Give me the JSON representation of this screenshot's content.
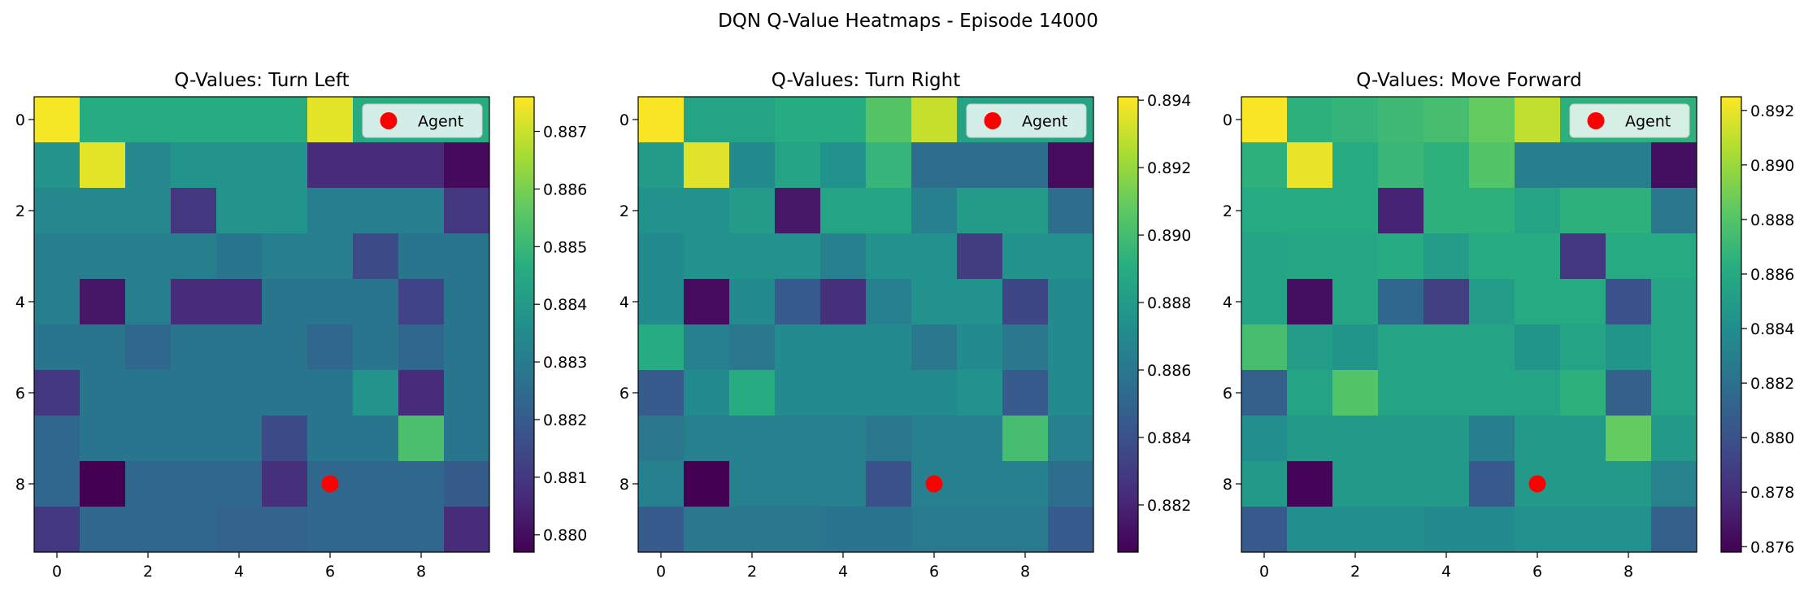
{
  "figure": {
    "title": "DQN Q-Value Heatmaps - Episode 14000"
  },
  "colors": {
    "agent_marker": "#ff0000",
    "legend_bg": "#ffffff",
    "axis": "#000000"
  },
  "chart_data": [
    {
      "type": "heatmap",
      "title": "Q-Values: Turn Left",
      "colormap": "viridis",
      "vmin": 0.8797,
      "vmax": 0.8876,
      "colorbar_ticks": [
        0.88,
        0.881,
        0.882,
        0.883,
        0.884,
        0.885,
        0.886,
        0.887
      ],
      "x_ticks": [
        0,
        2,
        4,
        6,
        8
      ],
      "y_ticks": [
        0,
        2,
        4,
        6,
        8
      ],
      "xlim": [
        -0.5,
        9.5
      ],
      "ylim": [
        9.5,
        -0.5
      ],
      "legend": {
        "position": "upper right",
        "label": "Agent"
      },
      "agent": {
        "x": 6,
        "y": 8
      },
      "values": [
        [
          0.8875,
          0.8846,
          0.8846,
          0.8846,
          0.8846,
          0.8846,
          0.8873,
          0.8846,
          0.8846,
          0.8846
        ],
        [
          0.8838,
          0.8873,
          0.8834,
          0.8838,
          0.8838,
          0.8838,
          0.8807,
          0.8807,
          0.8807,
          0.8799
        ],
        [
          0.8834,
          0.8834,
          0.8834,
          0.881,
          0.8838,
          0.8838,
          0.8831,
          0.8831,
          0.8831,
          0.881
        ],
        [
          0.8831,
          0.8831,
          0.8831,
          0.8831,
          0.8828,
          0.8831,
          0.8831,
          0.8815,
          0.8828,
          0.8828
        ],
        [
          0.8831,
          0.8802,
          0.8831,
          0.8807,
          0.8807,
          0.8828,
          0.8828,
          0.8828,
          0.8813,
          0.8828
        ],
        [
          0.8828,
          0.8828,
          0.8824,
          0.8828,
          0.8828,
          0.8828,
          0.8824,
          0.8828,
          0.8824,
          0.8828
        ],
        [
          0.881,
          0.8828,
          0.8828,
          0.8828,
          0.8828,
          0.8828,
          0.8828,
          0.8838,
          0.8807,
          0.8828
        ],
        [
          0.8824,
          0.8828,
          0.8828,
          0.8828,
          0.8828,
          0.8815,
          0.8828,
          0.8828,
          0.8853,
          0.8828
        ],
        [
          0.8824,
          0.8797,
          0.8824,
          0.8824,
          0.8824,
          0.8808,
          0.8824,
          0.8824,
          0.8824,
          0.882
        ],
        [
          0.881,
          0.8824,
          0.8824,
          0.8824,
          0.8822,
          0.8822,
          0.8824,
          0.8824,
          0.8824,
          0.8807
        ]
      ]
    },
    {
      "type": "heatmap",
      "title": "Q-Values: Turn Right",
      "colormap": "viridis",
      "vmin": 0.8806,
      "vmax": 0.8941,
      "colorbar_ticks": [
        0.882,
        0.884,
        0.886,
        0.888,
        0.89,
        0.892,
        0.894
      ],
      "x_ticks": [
        0,
        2,
        4,
        6,
        8
      ],
      "y_ticks": [
        0,
        2,
        4,
        6,
        8
      ],
      "xlim": [
        -0.5,
        9.5
      ],
      "ylim": [
        9.5,
        -0.5
      ],
      "legend": {
        "position": "upper right",
        "label": "Agent"
      },
      "agent": {
        "x": 6,
        "y": 8
      },
      "values": [
        [
          0.894,
          0.8885,
          0.8885,
          0.889,
          0.889,
          0.8905,
          0.893,
          0.8885,
          0.8885,
          0.8885
        ],
        [
          0.888,
          0.8935,
          0.887,
          0.8885,
          0.8875,
          0.8895,
          0.8855,
          0.8855,
          0.8855,
          0.881
        ],
        [
          0.8875,
          0.8875,
          0.888,
          0.8815,
          0.8885,
          0.8885,
          0.8865,
          0.888,
          0.888,
          0.8855
        ],
        [
          0.887,
          0.8875,
          0.8875,
          0.8875,
          0.8865,
          0.8875,
          0.8875,
          0.883,
          0.8875,
          0.8875
        ],
        [
          0.887,
          0.881,
          0.887,
          0.8845,
          0.8825,
          0.8865,
          0.8875,
          0.8875,
          0.8835,
          0.887
        ],
        [
          0.889,
          0.8865,
          0.886,
          0.887,
          0.887,
          0.887,
          0.886,
          0.887,
          0.886,
          0.887
        ],
        [
          0.8845,
          0.887,
          0.889,
          0.887,
          0.887,
          0.887,
          0.887,
          0.8875,
          0.8845,
          0.887
        ],
        [
          0.886,
          0.8865,
          0.8865,
          0.8865,
          0.8865,
          0.886,
          0.8865,
          0.8865,
          0.89,
          0.8865
        ],
        [
          0.8865,
          0.8806,
          0.8865,
          0.8865,
          0.8865,
          0.884,
          0.8865,
          0.8865,
          0.8865,
          0.8855
        ],
        [
          0.8845,
          0.886,
          0.886,
          0.886,
          0.8858,
          0.8858,
          0.8862,
          0.8862,
          0.8862,
          0.8845
        ]
      ]
    },
    {
      "type": "heatmap",
      "title": "Q-Values: Move Forward",
      "colormap": "viridis",
      "vmin": 0.8758,
      "vmax": 0.8925,
      "colorbar_ticks": [
        0.876,
        0.878,
        0.88,
        0.882,
        0.884,
        0.886,
        0.888,
        0.89,
        0.892
      ],
      "x_ticks": [
        0,
        2,
        4,
        6,
        8
      ],
      "y_ticks": [
        0,
        2,
        4,
        6,
        8
      ],
      "xlim": [
        -0.5,
        9.5
      ],
      "ylim": [
        9.5,
        -0.5
      ],
      "legend": {
        "position": "upper right",
        "label": "Agent"
      },
      "agent": {
        "x": 6,
        "y": 8
      },
      "values": [
        [
          0.8924,
          0.8865,
          0.8868,
          0.8872,
          0.8875,
          0.8885,
          0.891,
          0.8865,
          0.8865,
          0.8865
        ],
        [
          0.8865,
          0.892,
          0.886,
          0.887,
          0.8865,
          0.888,
          0.883,
          0.883,
          0.883,
          0.8765
        ],
        [
          0.886,
          0.886,
          0.886,
          0.8775,
          0.8865,
          0.8865,
          0.8855,
          0.8865,
          0.8865,
          0.8825
        ],
        [
          0.8855,
          0.8858,
          0.8858,
          0.8862,
          0.885,
          0.8862,
          0.8862,
          0.8785,
          0.886,
          0.886
        ],
        [
          0.8855,
          0.8765,
          0.8858,
          0.8815,
          0.879,
          0.885,
          0.886,
          0.886,
          0.88,
          0.8855
        ],
        [
          0.8875,
          0.885,
          0.8845,
          0.8855,
          0.8855,
          0.8855,
          0.8845,
          0.8855,
          0.8845,
          0.8855
        ],
        [
          0.881,
          0.8855,
          0.888,
          0.8855,
          0.8855,
          0.8855,
          0.8855,
          0.8865,
          0.881,
          0.8855
        ],
        [
          0.884,
          0.8848,
          0.8848,
          0.8848,
          0.8848,
          0.883,
          0.8848,
          0.8848,
          0.8885,
          0.8848
        ],
        [
          0.8848,
          0.876,
          0.8848,
          0.8848,
          0.8848,
          0.8805,
          0.8848,
          0.8848,
          0.8848,
          0.8832
        ],
        [
          0.8805,
          0.884,
          0.884,
          0.884,
          0.8838,
          0.8838,
          0.8842,
          0.8842,
          0.8842,
          0.881
        ]
      ]
    }
  ]
}
